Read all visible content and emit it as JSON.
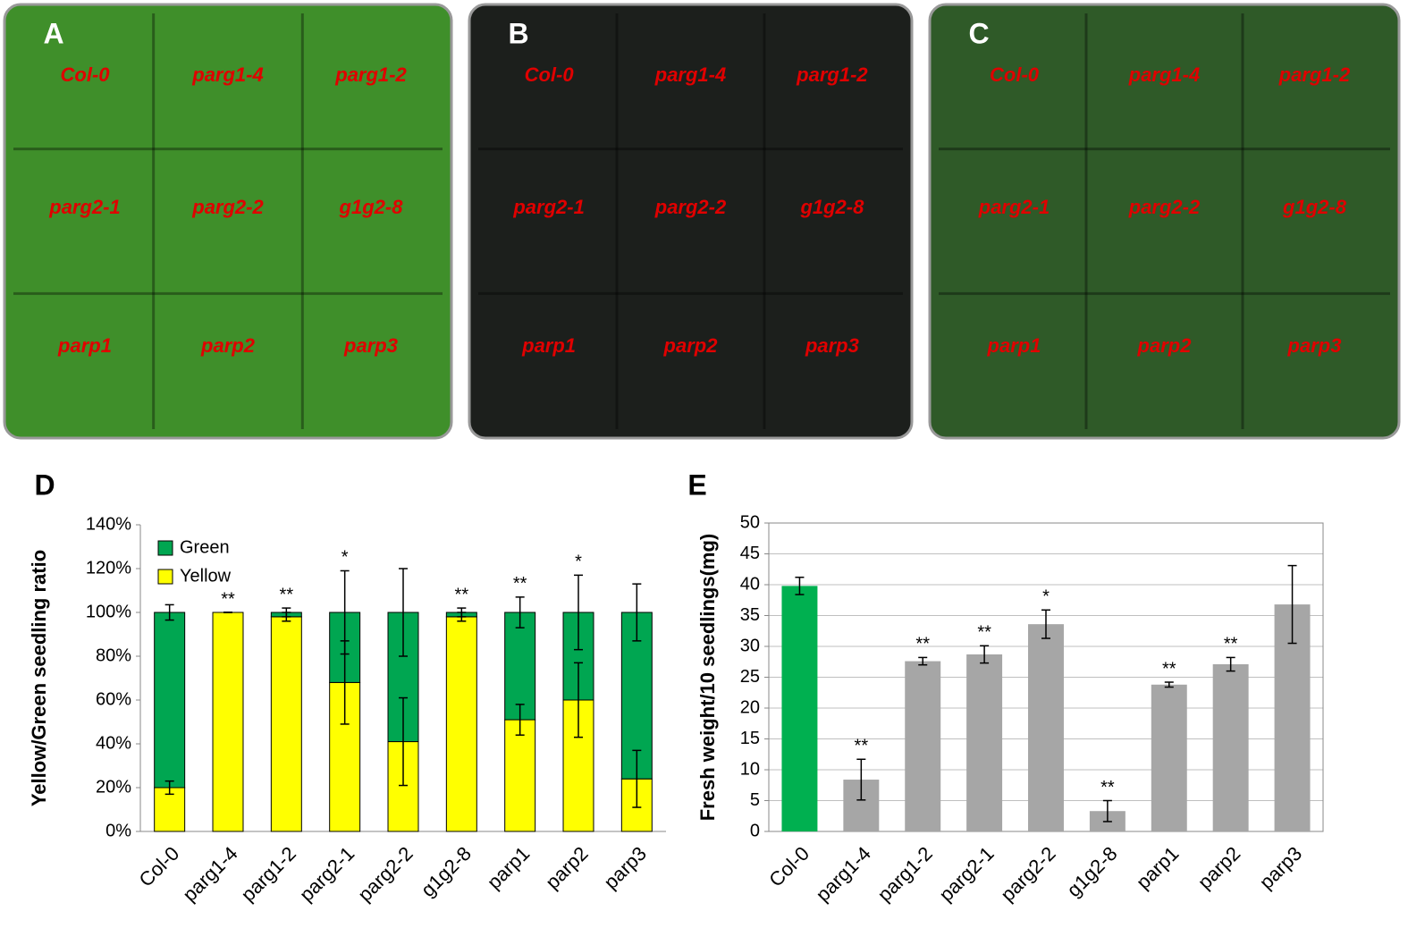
{
  "photo_panels": [
    {
      "label": "A",
      "genotypes": [
        "Col-0",
        "parg1-4",
        "parg1-2",
        "parg2-1",
        "parg2-2",
        "g1g2-8",
        "parp1",
        "parp2",
        "parp3"
      ]
    },
    {
      "label": "B",
      "genotypes": [
        "Col-0",
        "parg1-4",
        "parg1-2",
        "parg2-1",
        "parg2-2",
        "g1g2-8",
        "parp1",
        "parp2",
        "parp3"
      ]
    },
    {
      "label": "C",
      "genotypes": [
        "Col-0",
        "parg1-4",
        "parg1-2",
        "parg2-1",
        "parg2-2",
        "g1g2-8",
        "parp1",
        "parp2",
        "parp3"
      ]
    }
  ],
  "chart_data": [
    {
      "type": "stacked_bar",
      "panel_label": "D",
      "ylabel": "Yellow/Green seedling ratio",
      "categories": [
        "Col-0",
        "parg1-4",
        "parg1-2",
        "parg2-1",
        "parg2-2",
        "g1g2-8",
        "parp1",
        "parp2",
        "parp3"
      ],
      "series": [
        {
          "name": "Yellow",
          "color": "#ffff00",
          "values": [
            20,
            100,
            98,
            68,
            41,
            98,
            51,
            60,
            24
          ],
          "errors": [
            3,
            0,
            2,
            19,
            20,
            2,
            7,
            17,
            13
          ]
        },
        {
          "name": "Green",
          "color": "#00a651",
          "values": [
            80,
            0,
            2,
            32,
            59,
            2,
            49,
            40,
            76
          ],
          "errors": [
            3.5,
            0,
            2,
            19,
            20,
            2,
            7,
            17,
            13
          ]
        }
      ],
      "significance": [
        null,
        "**",
        "**",
        "*",
        null,
        "**",
        "**",
        "*",
        null
      ],
      "ylim": [
        0,
        140
      ],
      "yticks": [
        {
          "value": 0,
          "label": "0%"
        },
        {
          "value": 20,
          "label": "20%"
        },
        {
          "value": 40,
          "label": "40%"
        },
        {
          "value": 60,
          "label": "60%"
        },
        {
          "value": 80,
          "label": "80%"
        },
        {
          "value": 100,
          "label": "100%"
        },
        {
          "value": 120,
          "label": "120%"
        },
        {
          "value": 140,
          "label": "140%"
        }
      ],
      "grid": false,
      "legend": "upper left"
    },
    {
      "type": "bar",
      "panel_label": "E",
      "ylabel": "Fresh weight/10 seedlings(mg)",
      "categories": [
        "Col-0",
        "parg1-4",
        "parg1-2",
        "parg2-1",
        "parg2-2",
        "g1g2-8",
        "parp1",
        "parp2",
        "parp3"
      ],
      "values": [
        39.8,
        8.4,
        27.6,
        28.7,
        33.6,
        3.3,
        23.8,
        27.1,
        36.8
      ],
      "errors": [
        1.4,
        3.3,
        0.6,
        1.4,
        2.3,
        1.7,
        0.4,
        1.1,
        6.3
      ],
      "colors": [
        "#00b050",
        "#a6a6a6",
        "#a6a6a6",
        "#a6a6a6",
        "#a6a6a6",
        "#a6a6a6",
        "#a6a6a6",
        "#a6a6a6",
        "#a6a6a6"
      ],
      "significance": [
        null,
        "**",
        "**",
        "**",
        "*",
        "**",
        "**",
        "**",
        null
      ],
      "ylim": [
        0,
        50
      ],
      "yticks": [
        0,
        5,
        10,
        15,
        20,
        25,
        30,
        35,
        40,
        45,
        50
      ],
      "grid": true
    }
  ]
}
